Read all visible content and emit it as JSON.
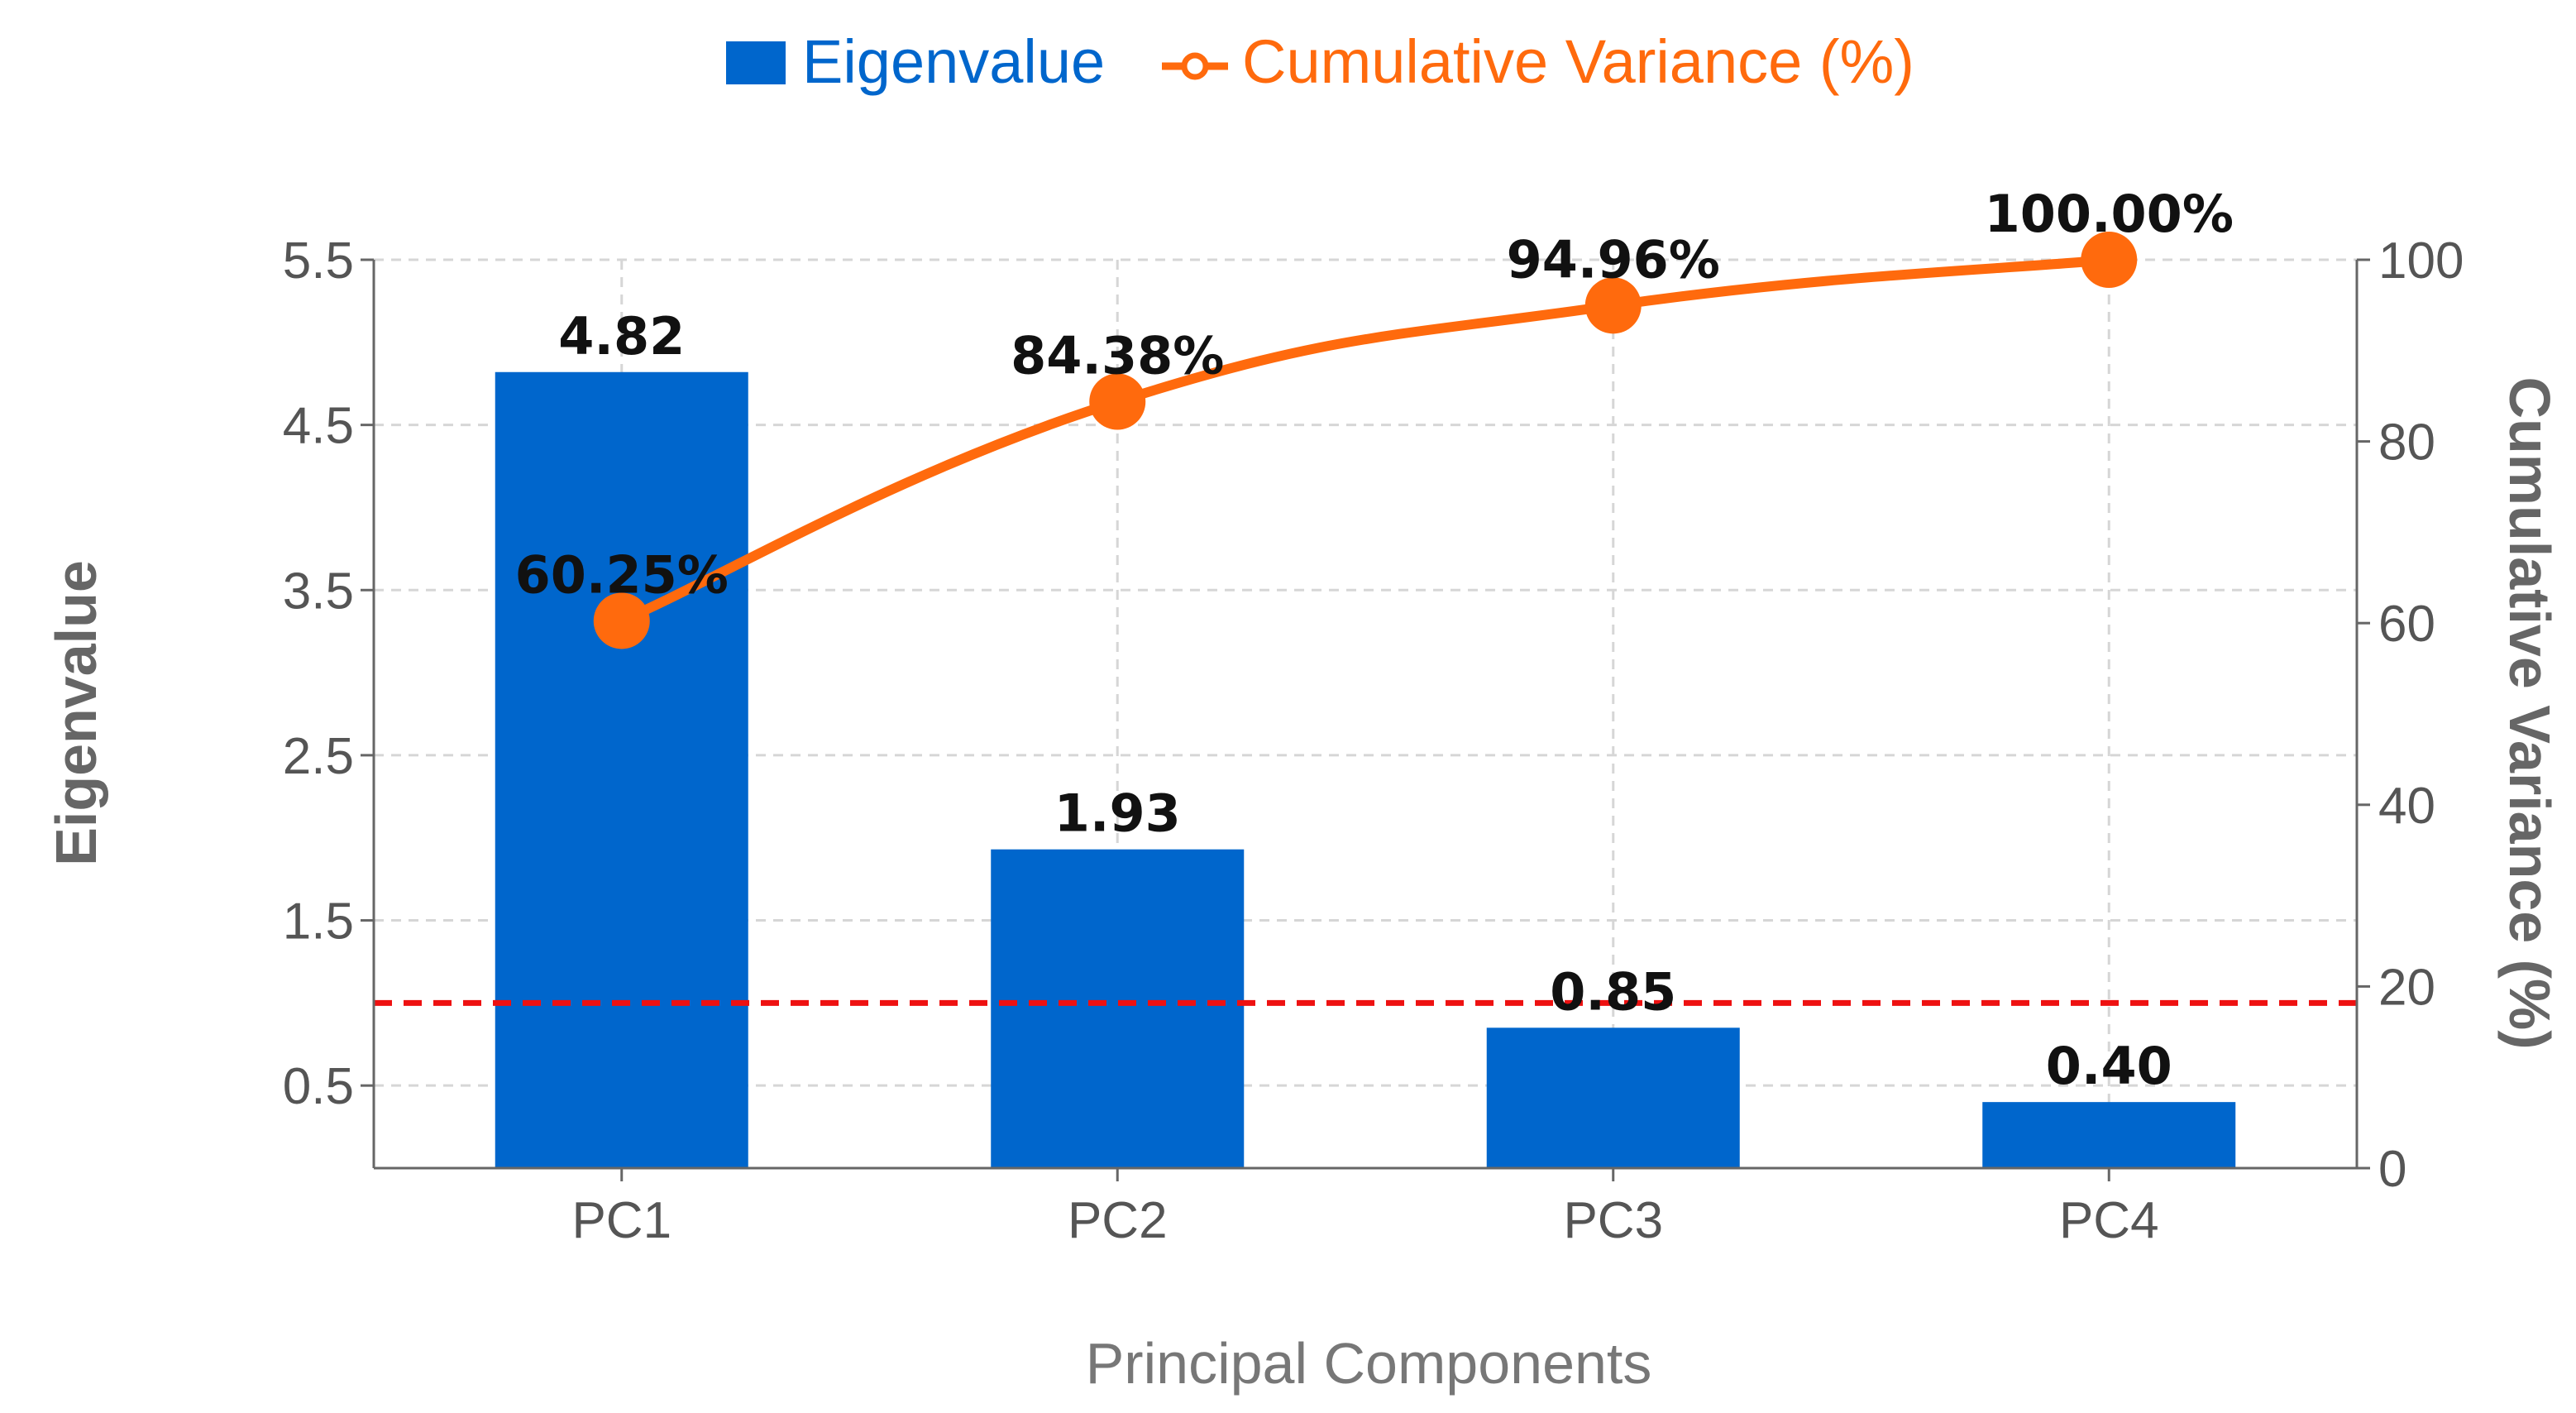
{
  "chart_data": {
    "type": "bar",
    "categories": [
      "PC1",
      "PC2",
      "PC3",
      "PC4"
    ],
    "series": [
      {
        "name": "Eigenvalue",
        "type": "bar",
        "axis": "left",
        "values": [
          4.82,
          1.93,
          0.85,
          0.4
        ],
        "labels": [
          "4.82",
          "1.93",
          "0.85",
          "0.40"
        ],
        "color": "#0066cc"
      },
      {
        "name": "Cumulative Variance (%)",
        "type": "line",
        "axis": "right",
        "values": [
          60.25,
          84.38,
          94.96,
          100.0
        ],
        "labels": [
          "60.25%",
          "84.38%",
          "94.96%",
          "100.00%"
        ],
        "color": "#ff6a0d"
      }
    ],
    "reference_line": {
      "axis": "left",
      "value": 1.0,
      "style": "dashed",
      "color": "#ee1111"
    },
    "xlabel": "Principal Components",
    "ylabel": "Eigenvalue",
    "y2label": "Cumulative Variance (%)",
    "ylim": [
      0,
      5.5
    ],
    "yticks": [
      "0.5",
      "1.5",
      "2.5",
      "3.5",
      "4.5",
      "5.5"
    ],
    "ytick_values": [
      0.5,
      1.5,
      2.5,
      3.5,
      4.5,
      5.5
    ],
    "y2lim": [
      0,
      100
    ],
    "y2ticks": [
      "0",
      "20",
      "40",
      "60",
      "80",
      "100"
    ],
    "y2tick_values": [
      0,
      20,
      40,
      60,
      80,
      100
    ],
    "grid": true,
    "legend": "top-center"
  }
}
